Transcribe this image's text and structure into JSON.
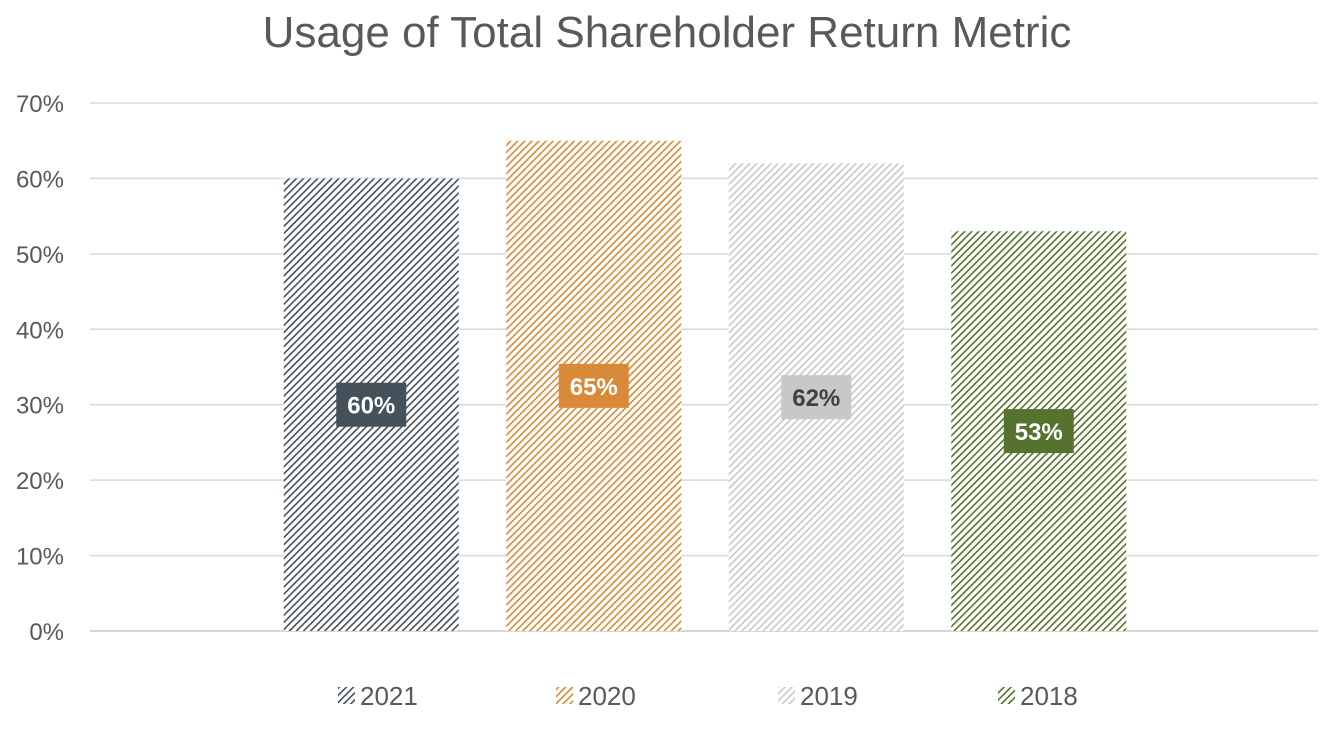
{
  "chart_data": {
    "type": "bar",
    "title": "Usage of Total Shareholder Return Metric",
    "xlabel": "",
    "ylabel": "",
    "ylim": [
      0,
      0.7
    ],
    "yticks": [
      "0%",
      "10%",
      "20%",
      "30%",
      "40%",
      "50%",
      "60%",
      "70%"
    ],
    "grid": true,
    "legend_position": "bottom",
    "series": [
      {
        "name": "2021",
        "value": 0.6,
        "label": "60%",
        "color": "#44505a",
        "label_text_color": "#ffffff"
      },
      {
        "name": "2020",
        "value": 0.65,
        "label": "65%",
        "color": "#d98a38",
        "label_text_color": "#ffffff"
      },
      {
        "name": "2019",
        "value": 0.62,
        "label": "62%",
        "color": "#c8c8c8",
        "label_text_color": "#404040"
      },
      {
        "name": "2018",
        "value": 0.53,
        "label": "53%",
        "color": "#55722e",
        "label_text_color": "#ffffff"
      }
    ]
  }
}
